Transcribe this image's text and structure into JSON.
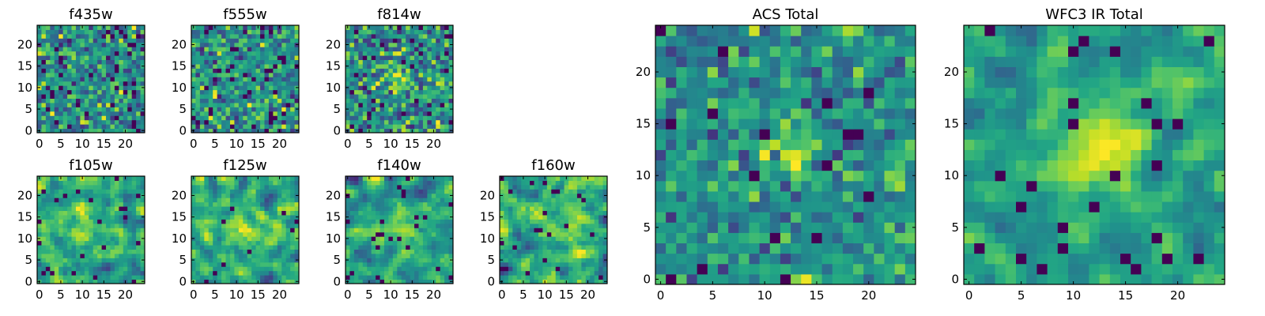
{
  "chart_data": [
    {
      "type": "heatmap",
      "title": "f435w",
      "xticks": [
        0,
        5,
        10,
        15,
        20
      ],
      "yticks": [
        0,
        5,
        10,
        15,
        20
      ],
      "xlim": [
        0,
        25
      ],
      "ylim": [
        0,
        25
      ],
      "seed": 11,
      "source_sigma": 0.0,
      "noise": 1.0,
      "outlier_rate": 0.05,
      "source_strength": 0.0
    },
    {
      "type": "heatmap",
      "title": "f555w",
      "xticks": [
        0,
        5,
        10,
        15,
        20
      ],
      "yticks": [
        0,
        5,
        10,
        15,
        20
      ],
      "xlim": [
        0,
        25
      ],
      "ylim": [
        0,
        25
      ],
      "seed": 23,
      "source_sigma": 0.0,
      "noise": 1.0,
      "outlier_rate": 0.05,
      "source_strength": 0.0
    },
    {
      "type": "heatmap",
      "title": "f814w",
      "xticks": [
        0,
        5,
        10,
        15,
        20
      ],
      "yticks": [
        0,
        5,
        10,
        15,
        20
      ],
      "xlim": [
        0,
        25
      ],
      "ylim": [
        0,
        25
      ],
      "seed": 37,
      "source_sigma": 1.6,
      "noise": 1.0,
      "outlier_rate": 0.04,
      "source_strength": 1.4
    },
    {
      "type": "heatmap",
      "title": "f105w",
      "xticks": [
        0,
        5,
        10,
        15,
        20
      ],
      "yticks": [
        0,
        5,
        10,
        15,
        20
      ],
      "xlim": [
        0,
        25
      ],
      "ylim": [
        0,
        25
      ],
      "seed": 41,
      "source_sigma": 2.2,
      "noise": 0.9,
      "outlier_rate": 0.03,
      "source_strength": 1.2,
      "smooth": 1
    },
    {
      "type": "heatmap",
      "title": "f125w",
      "xticks": [
        0,
        5,
        10,
        15,
        20
      ],
      "yticks": [
        0,
        5,
        10,
        15,
        20
      ],
      "xlim": [
        0,
        25
      ],
      "ylim": [
        0,
        25
      ],
      "seed": 53,
      "source_sigma": 2.2,
      "noise": 0.9,
      "outlier_rate": 0.03,
      "source_strength": 1.2,
      "smooth": 1
    },
    {
      "type": "heatmap",
      "title": "f140w",
      "xticks": [
        0,
        5,
        10,
        15,
        20
      ],
      "yticks": [
        0,
        5,
        10,
        15,
        20
      ],
      "xlim": [
        0,
        25
      ],
      "ylim": [
        0,
        25
      ],
      "seed": 67,
      "source_sigma": 2.4,
      "noise": 0.9,
      "outlier_rate": 0.03,
      "source_strength": 1.1,
      "smooth": 1
    },
    {
      "type": "heatmap",
      "title": "f160w",
      "xticks": [
        0,
        5,
        10,
        15,
        20
      ],
      "yticks": [
        0,
        5,
        10,
        15,
        20
      ],
      "xlim": [
        0,
        25
      ],
      "ylim": [
        0,
        25
      ],
      "seed": 79,
      "source_sigma": 2.4,
      "noise": 0.9,
      "outlier_rate": 0.04,
      "source_strength": 1.1,
      "smooth": 1
    },
    {
      "type": "heatmap",
      "title": "ACS Total",
      "xticks": [
        0,
        5,
        10,
        15,
        20
      ],
      "yticks": [
        0,
        5,
        10,
        15,
        20
      ],
      "xlim": [
        0,
        25
      ],
      "ylim": [
        0,
        25
      ],
      "seed": 97,
      "source_sigma": 2.0,
      "noise": 0.8,
      "outlier_rate": 0.035,
      "source_strength": 1.3
    },
    {
      "type": "heatmap",
      "title": "WFC3 IR Total",
      "xticks": [
        0,
        5,
        10,
        15,
        20
      ],
      "yticks": [
        0,
        5,
        10,
        15,
        20
      ],
      "xlim": [
        0,
        25
      ],
      "ylim": [
        0,
        25
      ],
      "seed": 131,
      "source_sigma": 2.4,
      "noise": 0.7,
      "outlier_rate": 0.04,
      "source_strength": 2.2,
      "smooth": 1
    }
  ],
  "colormap": "viridis"
}
